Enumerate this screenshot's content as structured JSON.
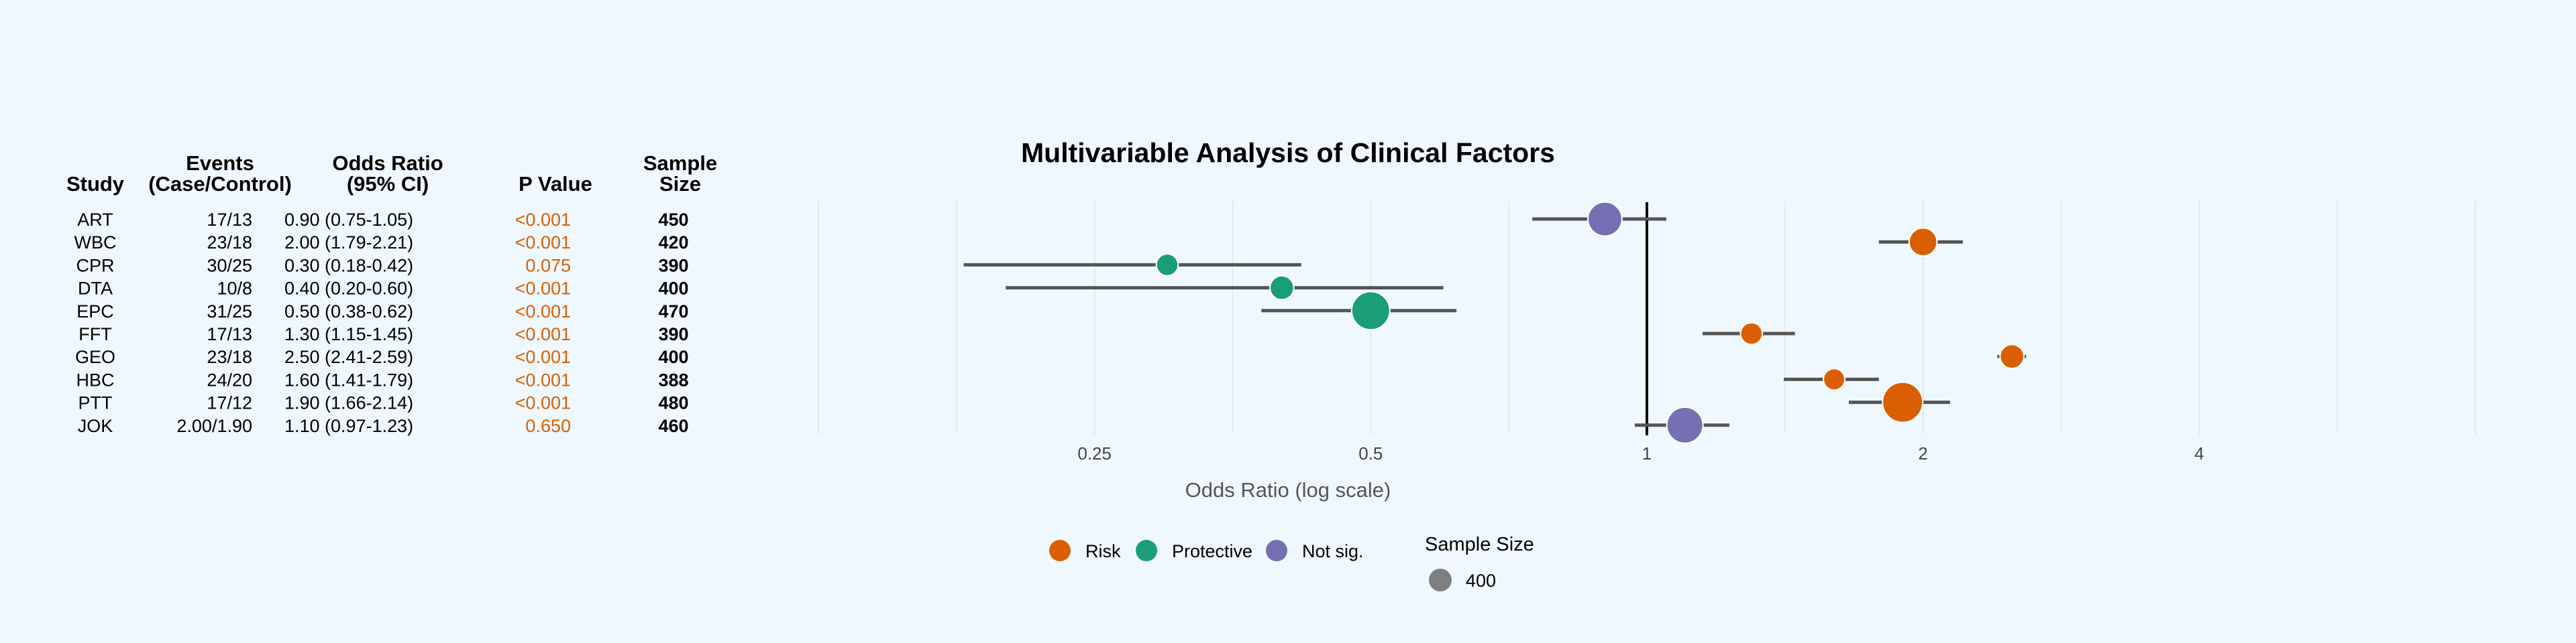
{
  "chart_data": {
    "type": "forest",
    "title": "Multivariable Analysis of Clinical Factors",
    "xlabel": "Odds Ratio (log scale)",
    "x_scale": "log2",
    "xlim": [
      0.125,
      8
    ],
    "x_ticks": [
      0.25,
      0.5,
      1,
      2,
      4
    ],
    "x_tick_labels": [
      "0.25",
      "0.5",
      "1",
      "2",
      "4"
    ],
    "reference_line": 1,
    "table_headers": {
      "study": "Study",
      "events_line1": "Events",
      "events_line2": "(Case/Control)",
      "or_line1": "Odds Ratio",
      "or_line2": "(95% CI)",
      "p": "P Value",
      "size_line1": "Sample",
      "size_line2": "Size"
    },
    "studies": [
      {
        "name": "ART",
        "events": "17/13",
        "or_text": "0.90 (0.75-1.05)",
        "p": "<0.001",
        "size": "450",
        "or": 0.9,
        "lo": 0.75,
        "hi": 1.05,
        "category": "Not sig.",
        "n": 450
      },
      {
        "name": "WBC",
        "events": "23/18",
        "or_text": "2.00 (1.79-2.21)",
        "p": "<0.001",
        "size": "420",
        "or": 2.0,
        "lo": 1.79,
        "hi": 2.21,
        "category": "Risk",
        "n": 420
      },
      {
        "name": "CPR",
        "events": "30/25",
        "or_text": "0.30 (0.18-0.42)",
        "p": "0.075",
        "size": "390",
        "or": 0.3,
        "lo": 0.18,
        "hi": 0.42,
        "category": "Protective",
        "n": 390
      },
      {
        "name": "DTA",
        "events": "10/8",
        "or_text": "0.40 (0.20-0.60)",
        "p": "<0.001",
        "size": "400",
        "or": 0.4,
        "lo": 0.2,
        "hi": 0.6,
        "category": "Protective",
        "n": 400
      },
      {
        "name": "EPC",
        "events": "31/25",
        "or_text": "0.50 (0.38-0.62)",
        "p": "<0.001",
        "size": "470",
        "or": 0.5,
        "lo": 0.38,
        "hi": 0.62,
        "category": "Protective",
        "n": 470
      },
      {
        "name": "FFT",
        "events": "17/13",
        "or_text": "1.30 (1.15-1.45)",
        "p": "<0.001",
        "size": "390",
        "or": 1.3,
        "lo": 1.15,
        "hi": 1.45,
        "category": "Risk",
        "n": 390
      },
      {
        "name": "GEO",
        "events": "23/18",
        "or_text": "2.50 (2.41-2.59)",
        "p": "<0.001",
        "size": "400",
        "or": 2.5,
        "lo": 2.41,
        "hi": 2.59,
        "category": "Risk",
        "n": 400
      },
      {
        "name": "HBC",
        "events": "24/20",
        "or_text": "1.60 (1.41-1.79)",
        "p": "<0.001",
        "size": "388",
        "or": 1.6,
        "lo": 1.41,
        "hi": 1.79,
        "category": "Risk",
        "n": 388
      },
      {
        "name": "PTT",
        "events": "17/12",
        "or_text": "1.90 (1.66-2.14)",
        "p": "<0.001",
        "size": "480",
        "or": 1.9,
        "lo": 1.66,
        "hi": 2.14,
        "category": "Risk",
        "n": 480
      },
      {
        "name": "JOK",
        "events": "2.00/1.90",
        "or_text": "1.10 (0.97-1.23)",
        "p": "0.650",
        "size": "460",
        "or": 1.1,
        "lo": 0.97,
        "hi": 1.23,
        "category": "Not sig.",
        "n": 460
      }
    ],
    "legend": {
      "items": [
        {
          "label": "Risk",
          "color": "#d95f02"
        },
        {
          "label": "Protective",
          "color": "#1b9e77"
        },
        {
          "label": "Not sig.",
          "color": "#7570b3"
        }
      ],
      "size_title": "Sample Size",
      "size_item": "400",
      "size_color": "#7f7f7f"
    },
    "colors": {
      "p_value": "#d95f02",
      "ci_line": "#555555",
      "reference": "#000000",
      "grid": "#dde9e4"
    },
    "grid": true,
    "legend_position": "bottom"
  }
}
